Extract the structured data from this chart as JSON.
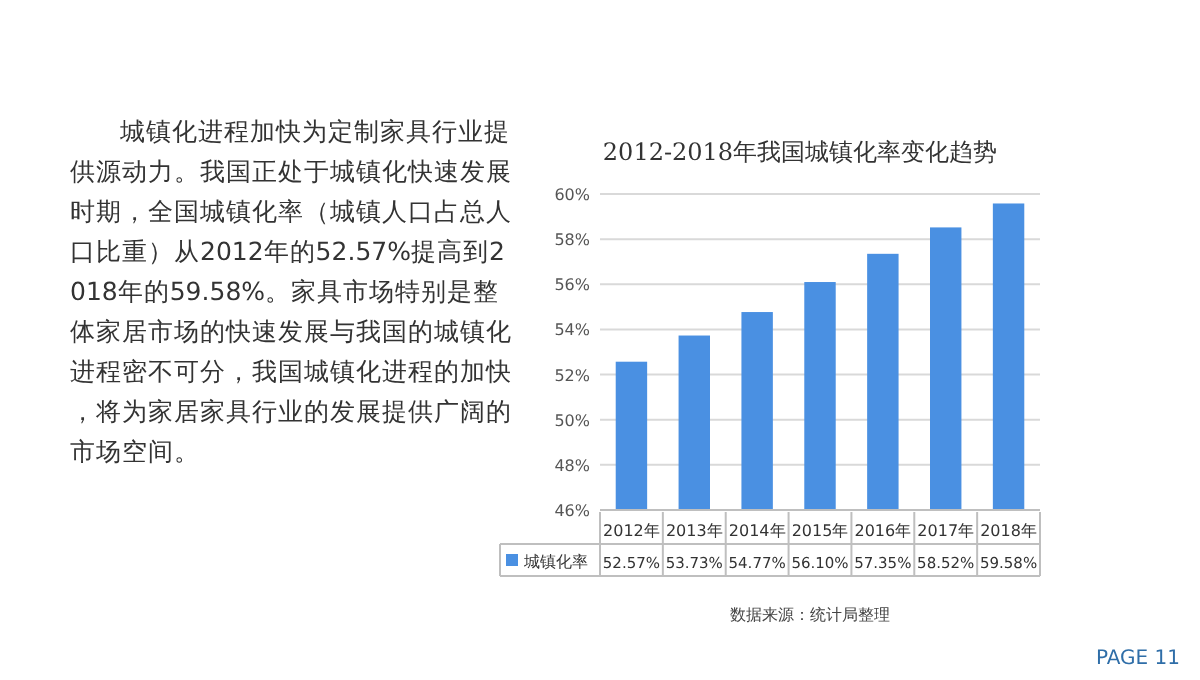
{
  "chart_data": {
    "type": "bar",
    "title": "2012-2018年我国城镇化率变化趋势",
    "categories": [
      "2012年",
      "2013年",
      "2014年",
      "2015年",
      "2016年",
      "2017年",
      "2018年"
    ],
    "series": [
      {
        "name": "城镇化率",
        "color": "#4a90e2",
        "values": [
          52.57,
          53.73,
          54.77,
          56.1,
          57.35,
          58.52,
          59.58
        ],
        "value_labels": [
          "52.57%",
          "53.73%",
          "54.77%",
          "56.10%",
          "57.35%",
          "58.52%",
          "59.58%"
        ]
      }
    ],
    "ylim": [
      46,
      60
    ],
    "yticks": [
      {
        "value": 46,
        "label": "46%"
      },
      {
        "value": 48,
        "label": "48%"
      },
      {
        "value": 50,
        "label": "50%"
      },
      {
        "value": 52,
        "label": "52%"
      },
      {
        "value": 54,
        "label": "54%"
      },
      {
        "value": 56,
        "label": "56%"
      },
      {
        "value": 58,
        "label": "58%"
      },
      {
        "value": 60,
        "label": "60%"
      }
    ],
    "grid": "y",
    "legend": "bottom",
    "annotations": [
      "城镇化进程加快为定制家具行业提供源动力。我国正处于城镇化快速发展时期，全国城镇化率（城镇人口占总人口比重）从2012年的52.57%提高到2018年的59.58%。家具市场特别是整体家居市场的快速发展与我国的城镇化进程密不可分，我国城镇化进程的加快，将为家居家具行业的发展提供广阔的市场空间。",
      "数据来源：统计局整理",
      "PAGE 11"
    ]
  }
}
